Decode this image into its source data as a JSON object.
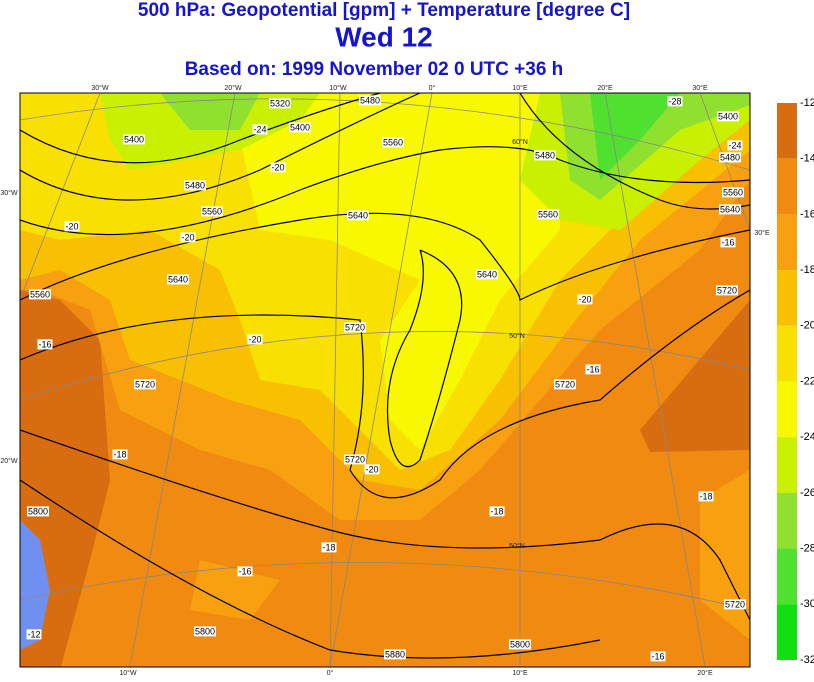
{
  "header": {
    "title": "500 hPa: Geopotential [gpm] + Temperature [degree C]",
    "day": "Wed 12",
    "based_on": "Based on: 1999 November 02   0 UTC  +36 h"
  },
  "colorbar": {
    "labels": [
      -12,
      -14,
      -16,
      -18,
      -20,
      -22,
      -24,
      -26,
      -28,
      -30,
      -32
    ]
  },
  "map": {
    "lon_labels_top": [
      "30°W",
      "20°W",
      "10°W",
      "0°",
      "10°E",
      "20°E",
      "30°E"
    ],
    "lon_labels_bottom": [
      "10°W",
      "0°",
      "10°E",
      "20°E"
    ],
    "edge_labels": [
      "30°W",
      "20°W",
      "30°E"
    ],
    "lat_labels": [
      "60°N",
      "50°N",
      "50°N"
    ],
    "geopotential_labels": [
      5320,
      5400,
      5480,
      5400,
      5480,
      5560,
      5640,
      5560,
      5720,
      5800,
      5800,
      5880,
      5800,
      5720,
      5720,
      5640,
      5560,
      5640,
      5480,
      5560,
      5400,
      5480,
      5560,
      5640,
      5720,
      5720,
      5720
    ],
    "temperature_labels": [
      -28,
      -24,
      -24,
      -20,
      -20,
      -20,
      -20,
      -20,
      -16,
      -18,
      -20,
      -18,
      -18,
      -16,
      -18,
      -16,
      -16,
      -12,
      -16
    ]
  }
}
